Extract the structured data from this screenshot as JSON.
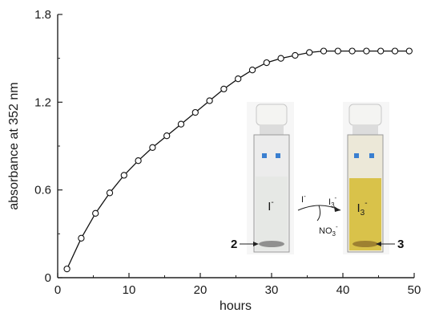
{
  "chart_data": {
    "type": "line",
    "xlabel": "hours",
    "ylabel": "absorbance at 352 nm",
    "xlim": [
      0,
      50
    ],
    "ylim": [
      0,
      1.8
    ],
    "x_ticks": [
      "0",
      "10",
      "20",
      "30",
      "40",
      "50"
    ],
    "y_ticks": [
      "0",
      "0.6",
      "1.2",
      "1.8"
    ],
    "grid": false,
    "series": [
      {
        "marker": "open-circle",
        "x": [
          1.3,
          3.3,
          5.3,
          7.3,
          9.3,
          11.3,
          13.3,
          15.3,
          17.3,
          19.3,
          21.3,
          23.3,
          25.3,
          27.3,
          29.3,
          31.3,
          33.3,
          35.3,
          37.3,
          39.3,
          41.3,
          43.3,
          45.3,
          47.3,
          49.3
        ],
        "y": [
          0.06,
          0.27,
          0.44,
          0.58,
          0.7,
          0.8,
          0.89,
          0.97,
          1.05,
          1.13,
          1.21,
          1.29,
          1.36,
          1.42,
          1.47,
          1.5,
          1.52,
          1.54,
          1.55,
          1.55,
          1.55,
          1.55,
          1.55,
          1.55,
          1.55
        ]
      }
    ]
  },
  "inset": {
    "left_cuvette_label": "I",
    "left_cuvette_sup": "-",
    "right_cuvette_label": "I",
    "right_cuvette_sub": "3",
    "right_cuvette_sup": "-",
    "arrow_top_left": "I",
    "arrow_top_left_sup": "-",
    "arrow_top_right": "I",
    "arrow_top_right_sub": "3",
    "arrow_top_right_sup": "-",
    "arrow_bottom": "NO",
    "arrow_bottom_sub": "3",
    "arrow_bottom_sup": "-",
    "left_compound": "2",
    "right_compound": "3",
    "colors": {
      "left_solution": "#e6e8e5",
      "right_solution": "#d9c24a",
      "cap": "#f4f4f2",
      "marker_blue": "#3a7fd0"
    }
  }
}
